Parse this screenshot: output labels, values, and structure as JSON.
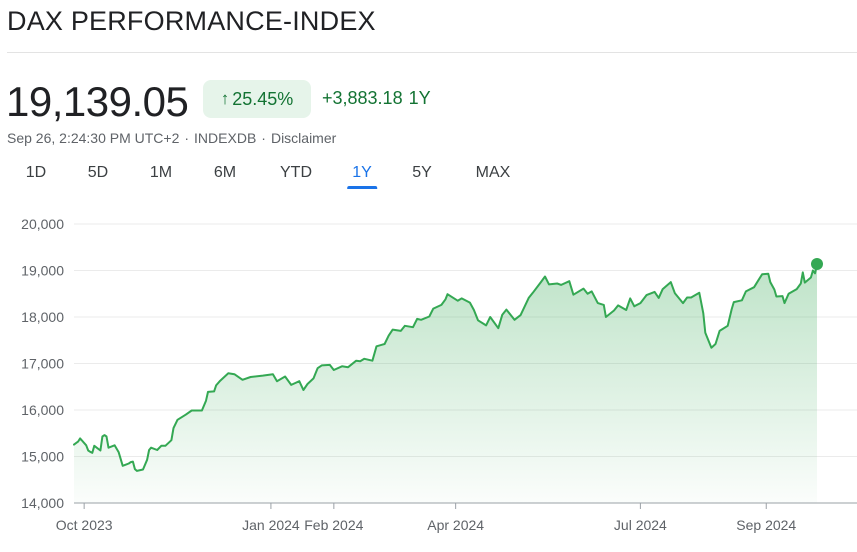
{
  "header": {
    "title": "DAX PERFORMANCE-INDEX"
  },
  "quote": {
    "price": "19,139.05",
    "percent_change": "25.45%",
    "arrow_icon": "arrow-up-icon",
    "abs_change": "+3,883.18",
    "period": "1Y",
    "timestamp": "Sep 26, 2:24:30 PM UTC+2",
    "separator": "·",
    "exchange": "INDEXDB",
    "disclaimer": "Disclaimer"
  },
  "tabs": [
    {
      "label": "1D"
    },
    {
      "label": "5D"
    },
    {
      "label": "1M"
    },
    {
      "label": "6M"
    },
    {
      "label": "YTD"
    },
    {
      "label": "1Y",
      "active": true
    },
    {
      "label": "5Y"
    },
    {
      "label": "MAX"
    }
  ],
  "colors": {
    "line": "#34a853",
    "fill_top": "#34a853",
    "positive_text": "#137333",
    "badge_bg": "#e6f4ea",
    "active_tab": "#1a73e8"
  },
  "chart_data": {
    "type": "area",
    "title": "",
    "xlabel": "",
    "ylabel": "",
    "ylim": [
      14000,
      20000
    ],
    "yticks": [
      {
        "value": 14000,
        "label": "14,000"
      },
      {
        "value": 15000,
        "label": "15,000"
      },
      {
        "value": 16000,
        "label": "16,000"
      },
      {
        "value": 17000,
        "label": "17,000"
      },
      {
        "value": 18000,
        "label": "18,000"
      },
      {
        "value": 19000,
        "label": "19,000"
      },
      {
        "value": 20000,
        "label": "20,000"
      }
    ],
    "x_range": [
      "2023-09-26",
      "2024-09-26"
    ],
    "xticks": [
      {
        "date": "2023-10-01",
        "label": "Oct 2023"
      },
      {
        "date": "2024-01-01",
        "label": "Jan 2024"
      },
      {
        "date": "2024-02-01",
        "label": "Feb 2024"
      },
      {
        "date": "2024-04-01",
        "label": "Apr 2024"
      },
      {
        "date": "2024-07-01",
        "label": "Jul 2024"
      },
      {
        "date": "2024-09-01",
        "label": "Sep 2024"
      }
    ],
    "grid": true,
    "legend": "none",
    "series": [
      {
        "points": [
          [
            "2023-09-26",
            15255
          ],
          [
            "2023-09-28",
            15320
          ],
          [
            "2023-09-29",
            15390
          ],
          [
            "2023-10-02",
            15240
          ],
          [
            "2023-10-03",
            15130
          ],
          [
            "2023-10-04",
            15100
          ],
          [
            "2023-10-05",
            15080
          ],
          [
            "2023-10-06",
            15230
          ],
          [
            "2023-10-09",
            15130
          ],
          [
            "2023-10-10",
            15430
          ],
          [
            "2023-10-11",
            15460
          ],
          [
            "2023-10-12",
            15430
          ],
          [
            "2023-10-13",
            15190
          ],
          [
            "2023-10-16",
            15240
          ],
          [
            "2023-10-18",
            15090
          ],
          [
            "2023-10-20",
            14800
          ],
          [
            "2023-10-23",
            14850
          ],
          [
            "2023-10-24",
            14880
          ],
          [
            "2023-10-25",
            14890
          ],
          [
            "2023-10-26",
            14730
          ],
          [
            "2023-10-27",
            14690
          ],
          [
            "2023-10-30",
            14720
          ],
          [
            "2023-11-01",
            14930
          ],
          [
            "2023-11-02",
            15140
          ],
          [
            "2023-11-03",
            15190
          ],
          [
            "2023-11-06",
            15140
          ],
          [
            "2023-11-08",
            15230
          ],
          [
            "2023-11-10",
            15230
          ],
          [
            "2023-11-13",
            15350
          ],
          [
            "2023-11-14",
            15610
          ],
          [
            "2023-11-16",
            15790
          ],
          [
            "2023-11-20",
            15900
          ],
          [
            "2023-11-23",
            15990
          ],
          [
            "2023-11-28",
            15990
          ],
          [
            "2023-11-30",
            16200
          ],
          [
            "2023-12-01",
            16390
          ],
          [
            "2023-12-04",
            16400
          ],
          [
            "2023-12-05",
            16530
          ],
          [
            "2023-12-07",
            16630
          ],
          [
            "2023-12-11",
            16790
          ],
          [
            "2023-12-14",
            16770
          ],
          [
            "2023-12-18",
            16650
          ],
          [
            "2023-12-22",
            16710
          ],
          [
            "2023-12-28",
            16740
          ],
          [
            "2024-01-02",
            16770
          ],
          [
            "2024-01-04",
            16620
          ],
          [
            "2024-01-08",
            16720
          ],
          [
            "2024-01-11",
            16540
          ],
          [
            "2024-01-15",
            16620
          ],
          [
            "2024-01-17",
            16430
          ],
          [
            "2024-01-19",
            16560
          ],
          [
            "2024-01-22",
            16680
          ],
          [
            "2024-01-24",
            16900
          ],
          [
            "2024-01-26",
            16960
          ],
          [
            "2024-01-30",
            16970
          ],
          [
            "2024-02-01",
            16860
          ],
          [
            "2024-02-05",
            16940
          ],
          [
            "2024-02-08",
            16920
          ],
          [
            "2024-02-12",
            17060
          ],
          [
            "2024-02-14",
            17050
          ],
          [
            "2024-02-16",
            17100
          ],
          [
            "2024-02-20",
            17060
          ],
          [
            "2024-02-22",
            17370
          ],
          [
            "2024-02-26",
            17420
          ],
          [
            "2024-02-28",
            17600
          ],
          [
            "2024-03-01",
            17730
          ],
          [
            "2024-03-05",
            17700
          ],
          [
            "2024-03-07",
            17810
          ],
          [
            "2024-03-11",
            17780
          ],
          [
            "2024-03-13",
            17960
          ],
          [
            "2024-03-15",
            17940
          ],
          [
            "2024-03-19",
            18010
          ],
          [
            "2024-03-21",
            18180
          ],
          [
            "2024-03-25",
            18260
          ],
          [
            "2024-03-27",
            18380
          ],
          [
            "2024-03-28",
            18490
          ],
          [
            "2024-04-02",
            18350
          ],
          [
            "2024-04-04",
            18400
          ],
          [
            "2024-04-08",
            18310
          ],
          [
            "2024-04-10",
            18150
          ],
          [
            "2024-04-12",
            17930
          ],
          [
            "2024-04-16",
            17820
          ],
          [
            "2024-04-18",
            18000
          ],
          [
            "2024-04-22",
            17760
          ],
          [
            "2024-04-24",
            18050
          ],
          [
            "2024-04-26",
            18160
          ],
          [
            "2024-04-30",
            17940
          ],
          [
            "2024-05-03",
            18040
          ],
          [
            "2024-05-07",
            18410
          ],
          [
            "2024-05-09",
            18520
          ],
          [
            "2024-05-13",
            18750
          ],
          [
            "2024-05-15",
            18870
          ],
          [
            "2024-05-17",
            18700
          ],
          [
            "2024-05-21",
            18720
          ],
          [
            "2024-05-23",
            18690
          ],
          [
            "2024-05-27",
            18770
          ],
          [
            "2024-05-29",
            18480
          ],
          [
            "2024-06-03",
            18610
          ],
          [
            "2024-06-05",
            18500
          ],
          [
            "2024-06-07",
            18550
          ],
          [
            "2024-06-10",
            18300
          ],
          [
            "2024-06-13",
            18260
          ],
          [
            "2024-06-14",
            18000
          ],
          [
            "2024-06-18",
            18140
          ],
          [
            "2024-06-20",
            18250
          ],
          [
            "2024-06-24",
            18150
          ],
          [
            "2024-06-26",
            18400
          ],
          [
            "2024-06-28",
            18230
          ],
          [
            "2024-07-01",
            18300
          ],
          [
            "2024-07-04",
            18470
          ],
          [
            "2024-07-08",
            18540
          ],
          [
            "2024-07-10",
            18410
          ],
          [
            "2024-07-12",
            18600
          ],
          [
            "2024-07-16",
            18750
          ],
          [
            "2024-07-18",
            18510
          ],
          [
            "2024-07-22",
            18300
          ],
          [
            "2024-07-24",
            18420
          ],
          [
            "2024-07-26",
            18420
          ],
          [
            "2024-07-30",
            18520
          ],
          [
            "2024-08-01",
            18080
          ],
          [
            "2024-08-02",
            17660
          ],
          [
            "2024-08-05",
            17340
          ],
          [
            "2024-08-07",
            17420
          ],
          [
            "2024-08-09",
            17700
          ],
          [
            "2024-08-13",
            17810
          ],
          [
            "2024-08-15",
            18170
          ],
          [
            "2024-08-16",
            18320
          ],
          [
            "2024-08-20",
            18360
          ],
          [
            "2024-08-22",
            18550
          ],
          [
            "2024-08-26",
            18640
          ],
          [
            "2024-08-28",
            18780
          ],
          [
            "2024-08-30",
            18920
          ],
          [
            "2024-09-02",
            18930
          ],
          [
            "2024-09-03",
            18750
          ],
          [
            "2024-09-05",
            18590
          ],
          [
            "2024-09-06",
            18440
          ],
          [
            "2024-09-09",
            18450
          ],
          [
            "2024-09-10",
            18300
          ],
          [
            "2024-09-12",
            18500
          ],
          [
            "2024-09-16",
            18600
          ],
          [
            "2024-09-18",
            18720
          ],
          [
            "2024-09-19",
            18960
          ],
          [
            "2024-09-20",
            18740
          ],
          [
            "2024-09-23",
            18850
          ],
          [
            "2024-09-24",
            19000
          ],
          [
            "2024-09-25",
            18940
          ],
          [
            "2024-09-26",
            19139
          ]
        ]
      }
    ]
  }
}
